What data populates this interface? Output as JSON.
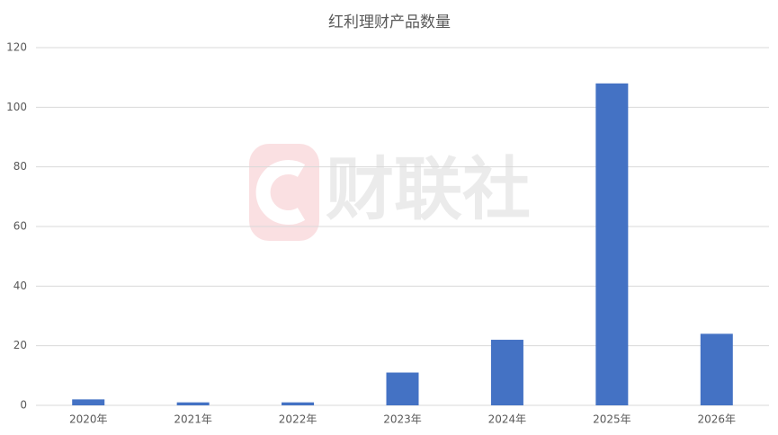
{
  "chart_data": {
    "type": "bar",
    "title": "红利理财产品数量",
    "categories": [
      "2020年",
      "2021年",
      "2022年",
      "2023年",
      "2024年",
      "2025年",
      "2026年"
    ],
    "values": [
      2,
      1,
      1,
      11,
      22,
      108,
      24
    ],
    "color": "#4472c4",
    "ylim": [
      0,
      120
    ],
    "yticks": [
      0,
      20,
      40,
      60,
      80,
      100,
      120
    ],
    "grid": true,
    "watermark": "财联社"
  }
}
